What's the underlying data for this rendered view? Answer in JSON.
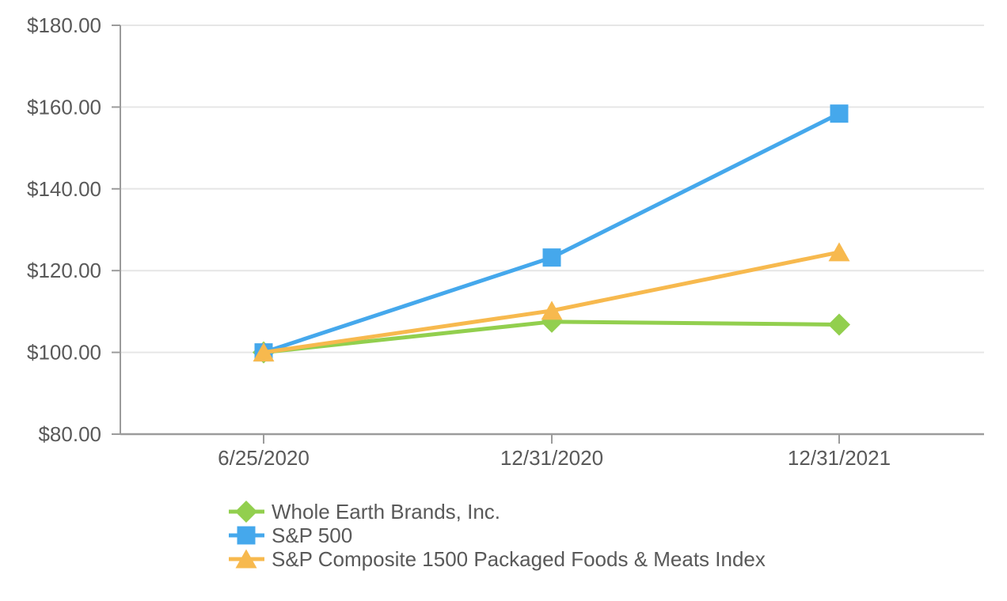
{
  "chart_data": {
    "type": "line",
    "title": "",
    "x_labels": [
      "6/25/2020",
      "12/31/2020",
      "12/31/2021"
    ],
    "y_tick_labels": [
      "$180.00",
      "$160.00",
      "$140.00",
      "$120.00",
      "$100.00",
      "$80.00"
    ],
    "y_tick_values": [
      180,
      160,
      140,
      120,
      100,
      80
    ],
    "ylim": [
      80,
      180
    ],
    "grid": true,
    "legend_position": "bottom-left",
    "series": [
      {
        "id": "whole-earth-brands",
        "name": "Whole Earth Brands, Inc.",
        "marker": "diamond",
        "color": "#92CF4E",
        "values": [
          100.0,
          107.5,
          106.8
        ]
      },
      {
        "id": "sp-500",
        "name": "S&P 500",
        "marker": "square",
        "color": "#45A8EC",
        "values": [
          100.0,
          123.2,
          158.4
        ]
      },
      {
        "id": "sp-composite-1500-packaged-foods-meats",
        "name": "S&P Composite 1500 Packaged Foods & Meats Index",
        "marker": "triangle",
        "color": "#F7B94E",
        "values": [
          100.0,
          110.2,
          124.5
        ]
      }
    ],
    "colors": {
      "text": "#595959",
      "gridline": "#E6E6E6",
      "axis": "#9B9B9B",
      "background": "#FFFFFF"
    }
  }
}
